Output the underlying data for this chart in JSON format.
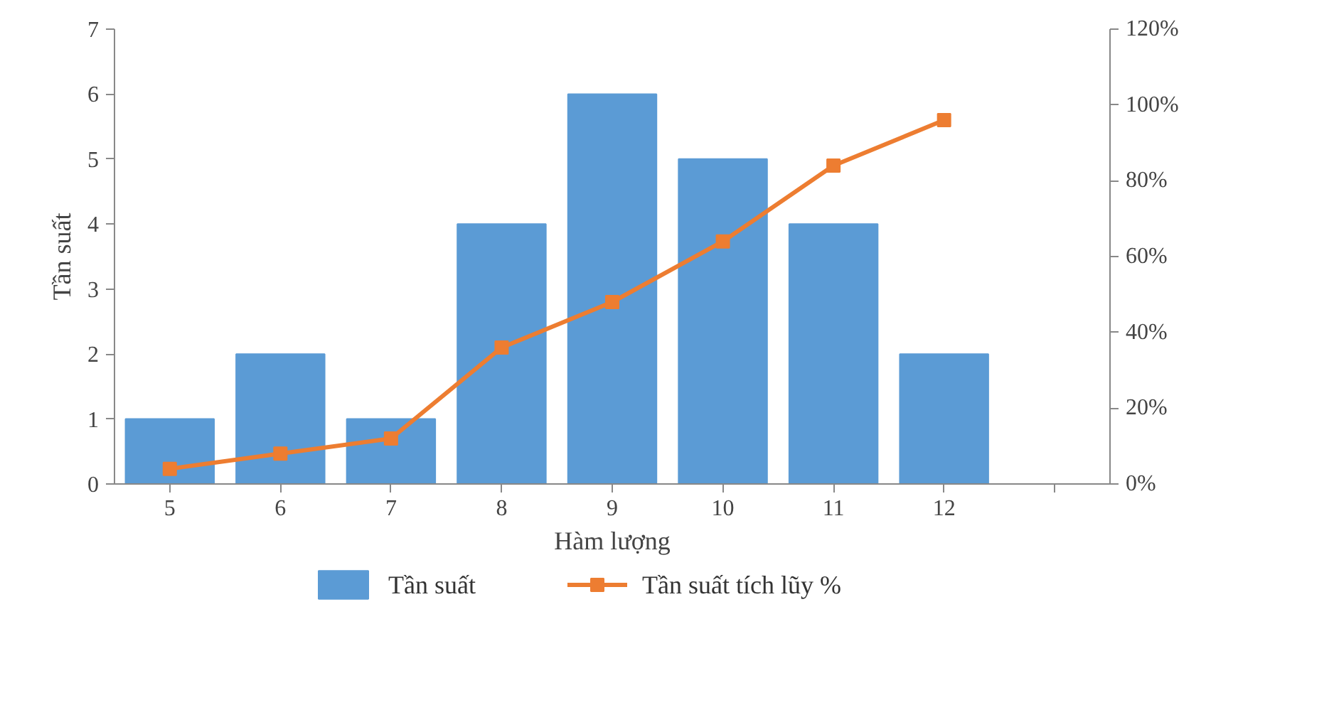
{
  "chart_data": {
    "type": "bar",
    "xlabel": "Hàm lượng",
    "ylabel": "Tần suất",
    "categories": [
      "5",
      "6",
      "7",
      "8",
      "9",
      "10",
      "11",
      "12",
      null
    ],
    "series": [
      {
        "name": "Tần suất",
        "color": "#5b9bd5",
        "values": [
          1,
          2,
          1,
          4,
          6,
          5,
          4,
          2,
          null
        ]
      },
      {
        "name": "Tần suất tích lũy %",
        "color": "#ed7d31",
        "type": "line",
        "axis": "y2",
        "marker": "square",
        "values": [
          4,
          8,
          12,
          36,
          48,
          64,
          84,
          96,
          null
        ]
      }
    ],
    "ylim": [
      0,
      7
    ],
    "yticks": [
      0,
      1,
      2,
      3,
      4,
      5,
      6,
      7
    ],
    "y2lim": [
      0,
      120
    ],
    "y2ticks": [
      {
        "value": 0,
        "label": "0%"
      },
      {
        "value": 20,
        "label": "20%"
      },
      {
        "value": 40,
        "label": "40%"
      },
      {
        "value": 60,
        "label": "60%"
      },
      {
        "value": 80,
        "label": "80%"
      },
      {
        "value": 100,
        "label": "100%"
      },
      {
        "value": 120,
        "label": "120%"
      }
    ],
    "grid": false,
    "legend": "bottom"
  }
}
